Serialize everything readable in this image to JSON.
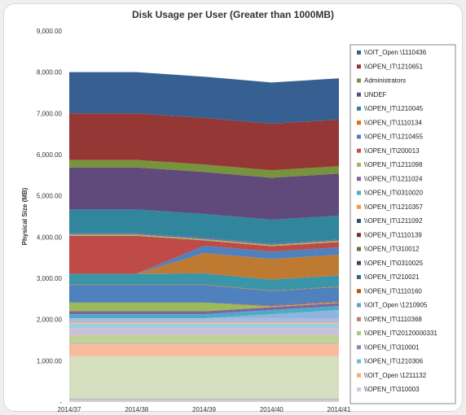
{
  "chart_data": {
    "type": "area",
    "stacked": true,
    "title": "Disk Usage per User (Greater than 1000MB)",
    "ylabel": "Physical Size (MB)",
    "xlabel": "",
    "ylim": [
      0,
      9000
    ],
    "y_ticks": [
      0,
      1000,
      2000,
      3000,
      4000,
      5000,
      6000,
      7000,
      8000,
      9000
    ],
    "y_tick_labels": [
      "-",
      "1,000.00",
      "2,000.00",
      "3,000.00",
      "4,000.00",
      "5,000.00",
      "6,000.00",
      "7,000.00",
      "8,000.00",
      "9,000.00"
    ],
    "categories": [
      "2014/37",
      "2014/38",
      "2014/39",
      "2014/40",
      "2014/41"
    ],
    "legend_position": "right",
    "series": [
      {
        "name": "\\\\OPEN_IT\\310003",
        "color": "#c6d0e8",
        "values": [
          30,
          30,
          30,
          30,
          30
        ]
      },
      {
        "name": "\\\\OIT_Open \\1211132",
        "color": "#f6c3a6",
        "values": [
          20,
          20,
          20,
          20,
          20
        ]
      },
      {
        "name": "\\\\OPEN_IT\\1210306",
        "color": "#b8c4e0",
        "values": [
          20,
          20,
          20,
          20,
          20
        ]
      },
      {
        "name": "\\\\OPEN_IT\\310001",
        "color": "#b7a9cc",
        "values": [
          10,
          10,
          10,
          10,
          10
        ]
      },
      {
        "name": "\\\\OPEN_IT\\20120000331",
        "color": "#d5dfc0",
        "values": [
          1030,
          1030,
          1030,
          1030,
          1030
        ]
      },
      {
        "name": "\\\\OPEN_IT\\1110368",
        "color": "#f7bb9b",
        "values": [
          290,
          290,
          290,
          290,
          290
        ]
      },
      {
        "name": "\\\\OIT_Open \\1210905",
        "color": "#d4b4b3",
        "values": [
          20,
          20,
          20,
          20,
          20
        ]
      },
      {
        "name": "\\\\OPEN_IT\\1110160",
        "color": "#bfd296",
        "values": [
          200,
          200,
          200,
          200,
          200
        ]
      },
      {
        "name": "\\\\OPEN_IT\\210021",
        "color": "#cdbfd9",
        "values": [
          170,
          170,
          170,
          170,
          170
        ]
      },
      {
        "name": "\\\\OPEN_IT\\0310025",
        "color": "#9ad0de",
        "values": [
          110,
          110,
          110,
          110,
          110
        ]
      },
      {
        "name": "\\\\OPEN_IT\\310012",
        "color": "#fac68c",
        "values": [
          20,
          20,
          20,
          20,
          20
        ]
      },
      {
        "name": "\\\\OPEN_IT\\1110139",
        "color": "#d99694",
        "values": [
          20,
          20,
          20,
          20,
          20
        ]
      },
      {
        "name": "\\\\OPEN_IT\\1211092",
        "color": "#a8b9db",
        "values": [
          90,
          90,
          90,
          90,
          90
        ]
      },
      {
        "name": "\\\\OPEN_IT\\1210357",
        "color": "#8fb4e0",
        "values": [
          0,
          0,
          0,
          100,
          200
        ]
      },
      {
        "name": "\\\\OPEN_IT\\0310020",
        "color": "#4bacc6",
        "values": [
          100,
          100,
          100,
          100,
          100
        ]
      },
      {
        "name": "\\\\OPEN_IT\\1211024",
        "color": "#8064a2",
        "values": [
          70,
          70,
          70,
          70,
          70
        ]
      },
      {
        "name": "\\\\OPEN_IT\\1211098",
        "color": "#9bbb59",
        "values": [
          210,
          210,
          210,
          20,
          20
        ]
      },
      {
        "name": "\\\\OPEN_IT\\200013",
        "color": "#c0504d",
        "values": [
          0,
          0,
          0,
          20,
          20
        ]
      },
      {
        "name": "\\\\OPEN_IT\\1210455",
        "color": "#4f81bd",
        "values": [
          430,
          430,
          430,
          350,
          350
        ]
      },
      {
        "name": "\\\\OPEN_IT\\1110134",
        "color": "#e46c0a",
        "values": [
          10,
          10,
          10,
          10,
          10
        ]
      },
      {
        "name": "\\\\OPEN_IT\\1210045",
        "color": "#3a95a8",
        "values": [
          260,
          260,
          270,
          270,
          270
        ]
      },
      {
        "name": "\\\\OPEN_IT\\1110134",
        "color": "#bf7a32",
        "values": [
          0,
          0,
          490,
          500,
          500
        ]
      },
      {
        "name": "\\\\OPEN_IT\\1210455",
        "color": "#4f81bd",
        "values": [
          0,
          0,
          180,
          180,
          180
        ]
      },
      {
        "name": "\\\\OPEN_IT\\200013",
        "color": "#be4b48",
        "values": [
          920,
          920,
          130,
          130,
          130
        ]
      },
      {
        "name": "\\\\OPEN_IT\\1211098",
        "color": "#9bbb59",
        "values": [
          30,
          30,
          30,
          30,
          30
        ]
      },
      {
        "name": "\\\\OPEN_IT\\1211024",
        "color": "#8064a2",
        "values": [
          30,
          30,
          30,
          30,
          30
        ]
      },
      {
        "name": "\\\\OPEN_IT\\0310020",
        "color": "#4bacc6",
        "values": [
          0,
          0,
          0,
          0,
          0
        ]
      },
      {
        "name": "\\\\OPEN_IT\\1210045",
        "color": "#31859c",
        "values": [
          580,
          580,
          580,
          580,
          580
        ]
      },
      {
        "name": "UNDEF",
        "color": "#604a7b",
        "values": [
          1020,
          1020,
          1020,
          1020,
          1020
        ]
      },
      {
        "name": "Administrators",
        "color": "#77933c",
        "values": [
          180,
          180,
          180,
          180,
          180
        ]
      },
      {
        "name": "\\\\OPEN_IT\\1210651",
        "color": "#953735",
        "values": [
          1130,
          1130,
          1130,
          1130,
          1130
        ]
      },
      {
        "name": "\\\\OIT_Open \\1110436",
        "color": "#376092",
        "values": [
          1000,
          1000,
          1000,
          1000,
          1000
        ]
      }
    ],
    "legend": [
      {
        "label": "\\\\OIT_Open \\1110436",
        "color": "#376092"
      },
      {
        "label": "\\\\OPEN_IT\\1210651",
        "color": "#953735"
      },
      {
        "label": "Administrators",
        "color": "#77933c"
      },
      {
        "label": "UNDEF",
        "color": "#604a7b"
      },
      {
        "label": "\\\\OPEN_IT\\1210045",
        "color": "#31859c"
      },
      {
        "label": "\\\\OPEN_IT\\1110134",
        "color": "#e46c0a"
      },
      {
        "label": "\\\\OPEN_IT\\1210455",
        "color": "#4f81bd"
      },
      {
        "label": "\\\\OPEN_IT\\200013",
        "color": "#c0504d"
      },
      {
        "label": "\\\\OPEN_IT\\1211098",
        "color": "#9bbb59"
      },
      {
        "label": "\\\\OPEN_IT\\1211024",
        "color": "#8064a2"
      },
      {
        "label": "\\\\OPEN_IT\\0310020",
        "color": "#4bacc6"
      },
      {
        "label": "\\\\OPEN_IT\\1210357",
        "color": "#f79646"
      },
      {
        "label": "\\\\OPEN_IT\\1211092",
        "color": "#2c4d75"
      },
      {
        "label": "\\\\OPEN_IT\\1110139",
        "color": "#772c2a"
      },
      {
        "label": "\\\\OPEN_IT\\310012",
        "color": "#5f7530"
      },
      {
        "label": "\\\\OPEN_IT\\0310025",
        "color": "#4d3b62"
      },
      {
        "label": "\\\\OPEN_IT\\210021",
        "color": "#276a7c"
      },
      {
        "label": "\\\\OPEN_IT\\1110160",
        "color": "#b65708"
      },
      {
        "label": "\\\\OIT_Open \\1210905",
        "color": "#729aca"
      },
      {
        "label": "\\\\OPEN_IT\\1110368",
        "color": "#cd7371"
      },
      {
        "label": "\\\\OPEN_IT\\20120000331",
        "color": "#afc97a"
      },
      {
        "label": "\\\\OPEN_IT\\310001",
        "color": "#9983b5"
      },
      {
        "label": "\\\\OPEN_IT\\1210306",
        "color": "#6fbdd1"
      },
      {
        "label": "\\\\OIT_Open \\1211132",
        "color": "#f9ab6b"
      },
      {
        "label": "\\\\OPEN_IT\\310003",
        "color": "#c3d1e8"
      }
    ]
  }
}
